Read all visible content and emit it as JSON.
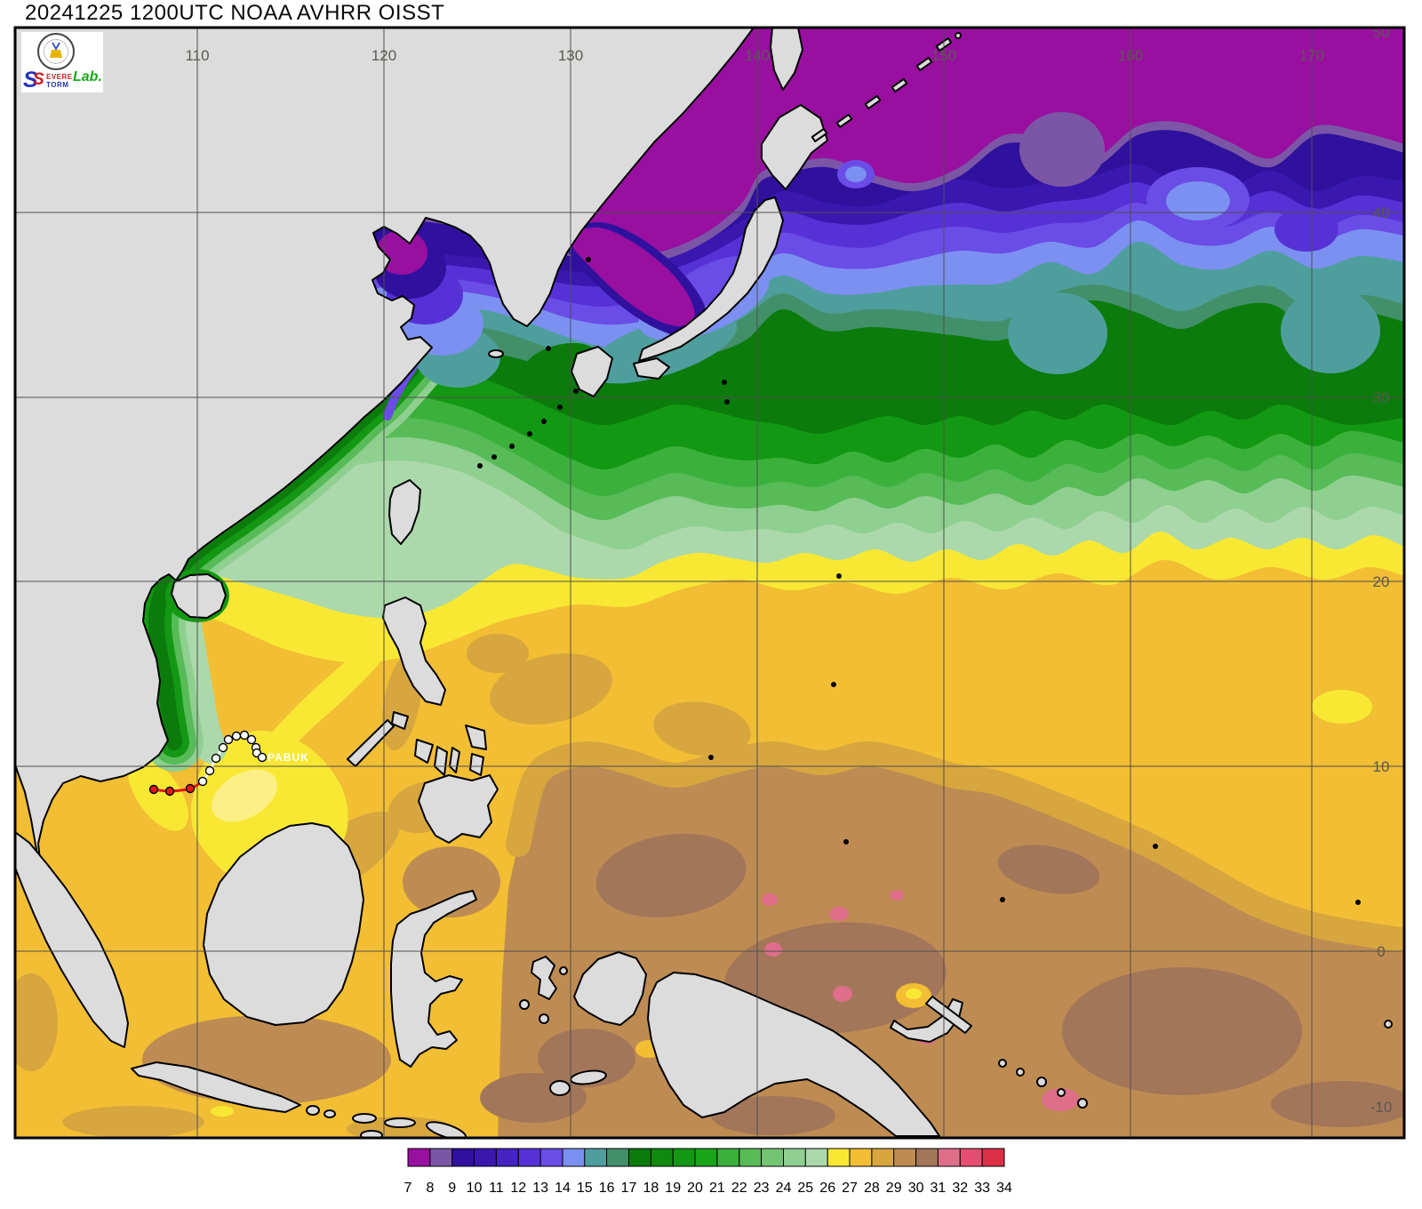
{
  "title": "20241225 1200UTC NOAA AVHRR OISST",
  "logo": {
    "s1": "S",
    "severe": "EVERE",
    "s2": "S",
    "storm": "TORM",
    "lab": "Lab."
  },
  "map": {
    "lon_labels": [
      "110",
      "120",
      "130",
      "140",
      "150",
      "160",
      "170"
    ],
    "lat_labels": [
      "50",
      "40",
      "30",
      "20",
      "10",
      "0",
      "-10"
    ],
    "land_color": "#dcdcdc",
    "coast_color": "#000000",
    "grid_color": "#4f4f4f",
    "grid_label_color": "#5a5a50",
    "storm": {
      "name": "PABUK",
      "label_color": "#ffffff",
      "recent_track_color": "#e01818",
      "past_track_color": "#ffffff",
      "track_points": [
        [
          173,
          888
        ],
        [
          191,
          890
        ],
        [
          214,
          887
        ],
        [
          228,
          879
        ],
        [
          236,
          867
        ],
        [
          243,
          853
        ],
        [
          251,
          841
        ],
        [
          257,
          832
        ],
        [
          266,
          828
        ],
        [
          275,
          827
        ],
        [
          283,
          832
        ],
        [
          288,
          841
        ],
        [
          289,
          847
        ],
        [
          295,
          852
        ]
      ],
      "recent_point_count": 3
    }
  },
  "colorbar": {
    "tick_labels": [
      "7",
      "8",
      "9",
      "10",
      "11",
      "12",
      "13",
      "14",
      "15",
      "16",
      "17",
      "18",
      "19",
      "20",
      "21",
      "22",
      "23",
      "24",
      "25",
      "26",
      "27",
      "28",
      "29",
      "30",
      "31",
      "32",
      "33",
      "34"
    ],
    "cell_colors": [
      "#990fa0",
      "#7b56a6",
      "#2f119e",
      "#3a18b0",
      "#4522c2",
      "#5632d6",
      "#6a4ce6",
      "#7b90f0",
      "#4f9e9e",
      "#42906a",
      "#0b7b0b",
      "#0f8a0f",
      "#139813",
      "#18a618",
      "#3bb13b",
      "#57bb57",
      "#73c573",
      "#8fcf8f",
      "#abd9ab",
      "#f9e833",
      "#f2be33",
      "#d7a63f",
      "#be8c52",
      "#a3765a",
      "#de6e8a",
      "#e64e71",
      "#de2f49"
    ]
  }
}
